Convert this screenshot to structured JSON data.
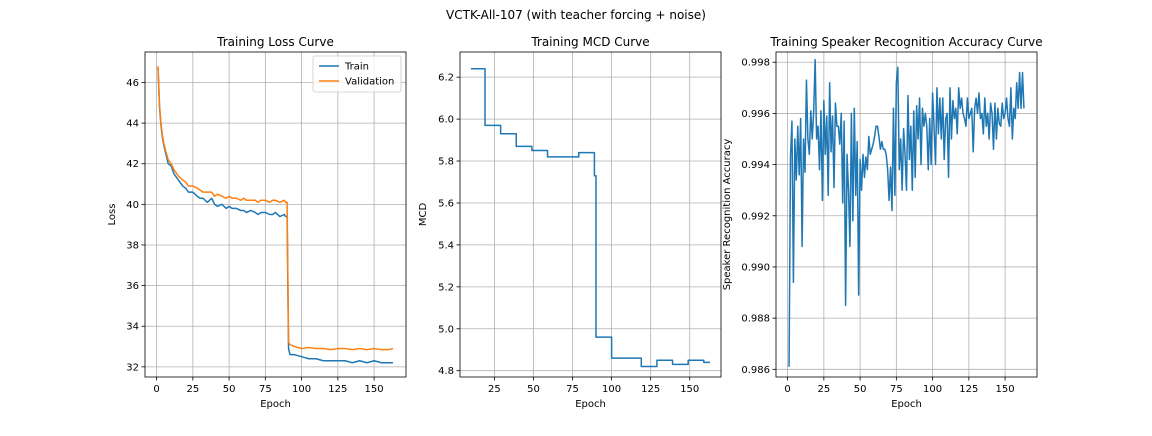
{
  "figure": {
    "title": "VCTK-All-107 (with teacher forcing + noise)"
  },
  "colors": {
    "train": "#1f77b4",
    "validation": "#ff7f0e",
    "grid": "#b0b0b0"
  },
  "chart_data": [
    {
      "type": "line",
      "title": "Training Loss Curve",
      "xlabel": "Epoch",
      "ylabel": "Loss",
      "xlim": [
        -8,
        172
      ],
      "ylim": [
        31.5,
        47.5
      ],
      "xticks": [
        0,
        25,
        50,
        75,
        100,
        125,
        150
      ],
      "yticks": [
        32,
        34,
        36,
        38,
        40,
        42,
        44,
        46
      ],
      "grid": true,
      "legend": {
        "position": "top-right",
        "entries": [
          "Train",
          "Validation"
        ]
      },
      "series": [
        {
          "name": "Train",
          "color": "#1f77b4",
          "x": [
            1,
            2,
            3,
            4,
            5,
            6,
            8,
            10,
            12,
            15,
            18,
            20,
            22,
            25,
            28,
            30,
            32,
            35,
            38,
            40,
            42,
            45,
            48,
            50,
            52,
            55,
            58,
            60,
            62,
            65,
            68,
            70,
            72,
            75,
            78,
            80,
            82,
            85,
            88,
            89,
            90,
            91,
            92,
            95,
            100,
            105,
            110,
            115,
            120,
            125,
            130,
            135,
            140,
            145,
            150,
            155,
            160,
            163
          ],
          "y": [
            46.7,
            44.8,
            43.9,
            43.3,
            42.9,
            42.6,
            42.0,
            41.9,
            41.5,
            41.2,
            40.9,
            40.8,
            40.6,
            40.6,
            40.4,
            40.3,
            40.3,
            40.1,
            40.3,
            40.0,
            39.9,
            40.0,
            39.8,
            39.9,
            39.8,
            39.8,
            39.7,
            39.7,
            39.6,
            39.7,
            39.6,
            39.5,
            39.6,
            39.6,
            39.5,
            39.5,
            39.6,
            39.4,
            39.5,
            39.4,
            39.4,
            32.9,
            32.6,
            32.6,
            32.5,
            32.4,
            32.4,
            32.3,
            32.3,
            32.3,
            32.3,
            32.2,
            32.3,
            32.2,
            32.3,
            32.2,
            32.2,
            32.2
          ]
        },
        {
          "name": "Validation",
          "color": "#ff7f0e",
          "x": [
            1,
            2,
            3,
            4,
            5,
            6,
            8,
            10,
            12,
            15,
            18,
            20,
            22,
            25,
            28,
            30,
            32,
            35,
            38,
            40,
            42,
            45,
            48,
            50,
            52,
            55,
            58,
            60,
            62,
            65,
            68,
            70,
            72,
            75,
            78,
            80,
            82,
            85,
            88,
            89,
            90,
            91,
            92,
            95,
            100,
            105,
            110,
            115,
            120,
            125,
            130,
            135,
            140,
            145,
            150,
            155,
            160,
            163
          ],
          "y": [
            46.8,
            44.9,
            44.0,
            43.4,
            43.0,
            42.7,
            42.2,
            42.0,
            41.7,
            41.4,
            41.2,
            41.1,
            40.9,
            40.9,
            40.8,
            40.7,
            40.6,
            40.6,
            40.6,
            40.4,
            40.5,
            40.4,
            40.3,
            40.4,
            40.3,
            40.3,
            40.2,
            40.3,
            40.2,
            40.2,
            40.2,
            40.1,
            40.2,
            40.2,
            40.1,
            40.2,
            40.2,
            40.1,
            40.2,
            40.1,
            40.1,
            33.2,
            33.1,
            33.0,
            32.9,
            32.95,
            32.9,
            32.9,
            32.85,
            32.9,
            32.9,
            32.85,
            32.9,
            32.85,
            32.9,
            32.85,
            32.85,
            32.9
          ]
        }
      ]
    },
    {
      "type": "line",
      "title": "Training MCD Curve",
      "xlabel": "Epoch",
      "ylabel": "MCD",
      "xlim": [
        3,
        170
      ],
      "ylim": [
        4.77,
        6.32
      ],
      "xticks": [
        25,
        50,
        75,
        100,
        125,
        150
      ],
      "yticks": [
        4.8,
        5.0,
        5.2,
        5.4,
        5.6,
        5.8,
        6.0,
        6.2
      ],
      "grid": true,
      "series": [
        {
          "color": "#1f77b4",
          "x": [
            10,
            19,
            19,
            20,
            20,
            29,
            29,
            39,
            39,
            49,
            49,
            59,
            59,
            68,
            68,
            69,
            69,
            79,
            79,
            89,
            89,
            90,
            90,
            100,
            100,
            109,
            109,
            119,
            119,
            129,
            129,
            139,
            139,
            149,
            149,
            159,
            159,
            163
          ],
          "y": [
            6.24,
            6.24,
            5.97,
            5.97,
            5.97,
            5.97,
            5.93,
            5.93,
            5.87,
            5.87,
            5.85,
            5.85,
            5.82,
            5.82,
            5.82,
            5.82,
            5.82,
            5.82,
            5.84,
            5.84,
            5.73,
            5.73,
            4.96,
            4.96,
            4.86,
            4.86,
            4.86,
            4.86,
            4.82,
            4.82,
            4.85,
            4.85,
            4.83,
            4.83,
            4.85,
            4.85,
            4.84,
            4.84
          ]
        }
      ]
    },
    {
      "type": "line",
      "title": "Training Speaker Recognition Accuracy Curve",
      "xlabel": "Epoch",
      "ylabel": "Speaker Recognition Accuracy",
      "xlim": [
        -8,
        172
      ],
      "ylim": [
        0.9857,
        0.9984
      ],
      "xticks": [
        0,
        25,
        50,
        75,
        100,
        125,
        150
      ],
      "yticks": [
        0.986,
        0.988,
        0.99,
        0.992,
        0.994,
        0.996,
        0.998
      ],
      "grid": true,
      "series": [
        {
          "color": "#1f77b4",
          "x": [
            1,
            2,
            3,
            4,
            5,
            6,
            7,
            8,
            9,
            10,
            11,
            12,
            13,
            14,
            15,
            16,
            17,
            18,
            19,
            20,
            21,
            22,
            23,
            24,
            25,
            26,
            27,
            28,
            29,
            30,
            31,
            32,
            33,
            34,
            35,
            36,
            37,
            38,
            39,
            40,
            41,
            42,
            43,
            44,
            45,
            46,
            47,
            48,
            49,
            50,
            51,
            52,
            53,
            54,
            55,
            56,
            57,
            58,
            59,
            60,
            61,
            62,
            63,
            64,
            65,
            66,
            67,
            68,
            69,
            70,
            71,
            72,
            73,
            74,
            75,
            76,
            77,
            78,
            79,
            80,
            81,
            82,
            83,
            84,
            85,
            86,
            87,
            88,
            89,
            90,
            91,
            92,
            93,
            94,
            95,
            96,
            97,
            98,
            99,
            100,
            101,
            102,
            103,
            104,
            105,
            106,
            107,
            108,
            109,
            110,
            111,
            112,
            113,
            114,
            115,
            116,
            117,
            118,
            119,
            120,
            121,
            122,
            123,
            124,
            125,
            126,
            127,
            128,
            129,
            130,
            131,
            132,
            133,
            134,
            135,
            136,
            137,
            138,
            139,
            140,
            141,
            142,
            143,
            144,
            145,
            146,
            147,
            148,
            149,
            150,
            151,
            152,
            153,
            154,
            155,
            156,
            157,
            158,
            159,
            160,
            161,
            162,
            163
          ],
          "y": [
            0.9861,
            0.9943,
            0.9957,
            0.9894,
            0.995,
            0.9934,
            0.9955,
            0.9936,
            0.9958,
            0.9908,
            0.995,
            0.9937,
            0.9973,
            0.995,
            0.9944,
            0.9961,
            0.995,
            0.9961,
            0.9981,
            0.995,
            0.9955,
            0.9938,
            0.9961,
            0.9926,
            0.9965,
            0.9944,
            0.9959,
            0.9928,
            0.9972,
            0.9945,
            0.9959,
            0.9931,
            0.9964,
            0.9955,
            0.9955,
            0.9948,
            0.996,
            0.9925,
            0.9957,
            0.9885,
            0.9944,
            0.993,
            0.9908,
            0.996,
            0.9918,
            0.9962,
            0.9928,
            0.9949,
            0.9889,
            0.9942,
            0.993,
            0.9944,
            0.9935,
            0.9943,
            0.9938,
            0.9951,
            0.9944,
            0.9946,
            0.9948,
            0.9951,
            0.9955,
            0.9955,
            0.9951,
            0.9946,
            0.9949,
            0.9946,
            0.9946,
            0.9944,
            0.9938,
            0.9926,
            0.9939,
            0.9922,
            0.9962,
            0.9928,
            0.9972,
            0.9978,
            0.9938,
            0.995,
            0.993,
            0.9954,
            0.9944,
            0.993,
            0.9967,
            0.9942,
            0.9955,
            0.993,
            0.9961,
            0.9935,
            0.9963,
            0.995,
            0.9966,
            0.994,
            0.9962,
            0.9955,
            0.996,
            0.9955,
            0.9938,
            0.9958,
            0.994,
            0.9968,
            0.9955,
            0.994,
            0.997,
            0.9952,
            0.9966,
            0.995,
            0.9966,
            0.9942,
            0.9958,
            0.996,
            0.9935,
            0.997,
            0.995,
            0.9965,
            0.9958,
            0.9962,
            0.9952,
            0.997,
            0.9962,
            0.9966,
            0.996,
            0.9958,
            0.9955,
            0.9966,
            0.9958,
            0.996,
            0.9962,
            0.9945,
            0.9962,
            0.9966,
            0.996,
            0.9968,
            0.9958,
            0.996,
            0.9952,
            0.9966,
            0.9955,
            0.996,
            0.995,
            0.9964,
            0.996,
            0.9946,
            0.9964,
            0.995,
            0.9962,
            0.9956,
            0.9955,
            0.9964,
            0.9958,
            0.996,
            0.9966,
            0.9958,
            0.9955,
            0.997,
            0.995,
            0.9962,
            0.9958,
            0.9972,
            0.9962,
            0.9976,
            0.9962,
            0.9976,
            0.9962
          ]
        }
      ]
    }
  ]
}
